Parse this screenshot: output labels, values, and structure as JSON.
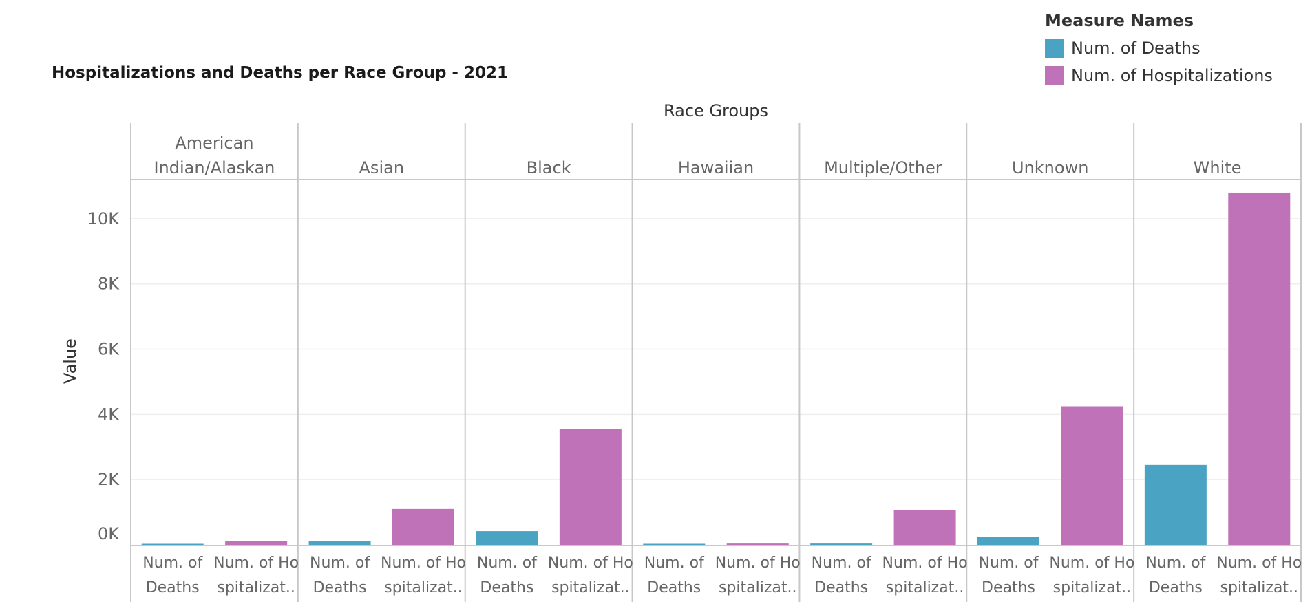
{
  "chart_data": {
    "type": "bar",
    "title": "Hospitalizations and Deaths per Race Group - 2021",
    "column_header_title": "Race Groups",
    "ylabel": "Value",
    "ylim": [
      0,
      11200
    ],
    "yticks": [
      0,
      2000,
      4000,
      6000,
      8000,
      10000
    ],
    "ytick_labels": [
      "0K",
      "2K",
      "4K",
      "6K",
      "8K",
      "10K"
    ],
    "grid": true,
    "legend": {
      "title": "Measure Names",
      "position": "top-right",
      "items": [
        {
          "name": "Num. of Deaths",
          "color": "#4ba3c3"
        },
        {
          "name": "Num. of Hospitalizations",
          "color": "#c072b8"
        }
      ]
    },
    "groups": [
      {
        "label_lines": [
          "American",
          "Indian/Alaskan"
        ],
        "values": [
          15,
          120
        ]
      },
      {
        "label_lines": [
          "Asian"
        ],
        "values": [
          110,
          1100
        ]
      },
      {
        "label_lines": [
          "Black"
        ],
        "values": [
          420,
          3550
        ]
      },
      {
        "label_lines": [
          "Hawaiian"
        ],
        "values": [
          5,
          40
        ]
      },
      {
        "label_lines": [
          "Multiple/Other"
        ],
        "values": [
          40,
          1060
        ]
      },
      {
        "label_lines": [
          "Unknown"
        ],
        "values": [
          240,
          4250
        ]
      },
      {
        "label_lines": [
          "White"
        ],
        "values": [
          2450,
          10800
        ]
      }
    ],
    "measure_labels": [
      [
        "Num. of",
        "Deaths"
      ],
      [
        "Num. of Ho",
        "spitalizat.."
      ]
    ]
  }
}
